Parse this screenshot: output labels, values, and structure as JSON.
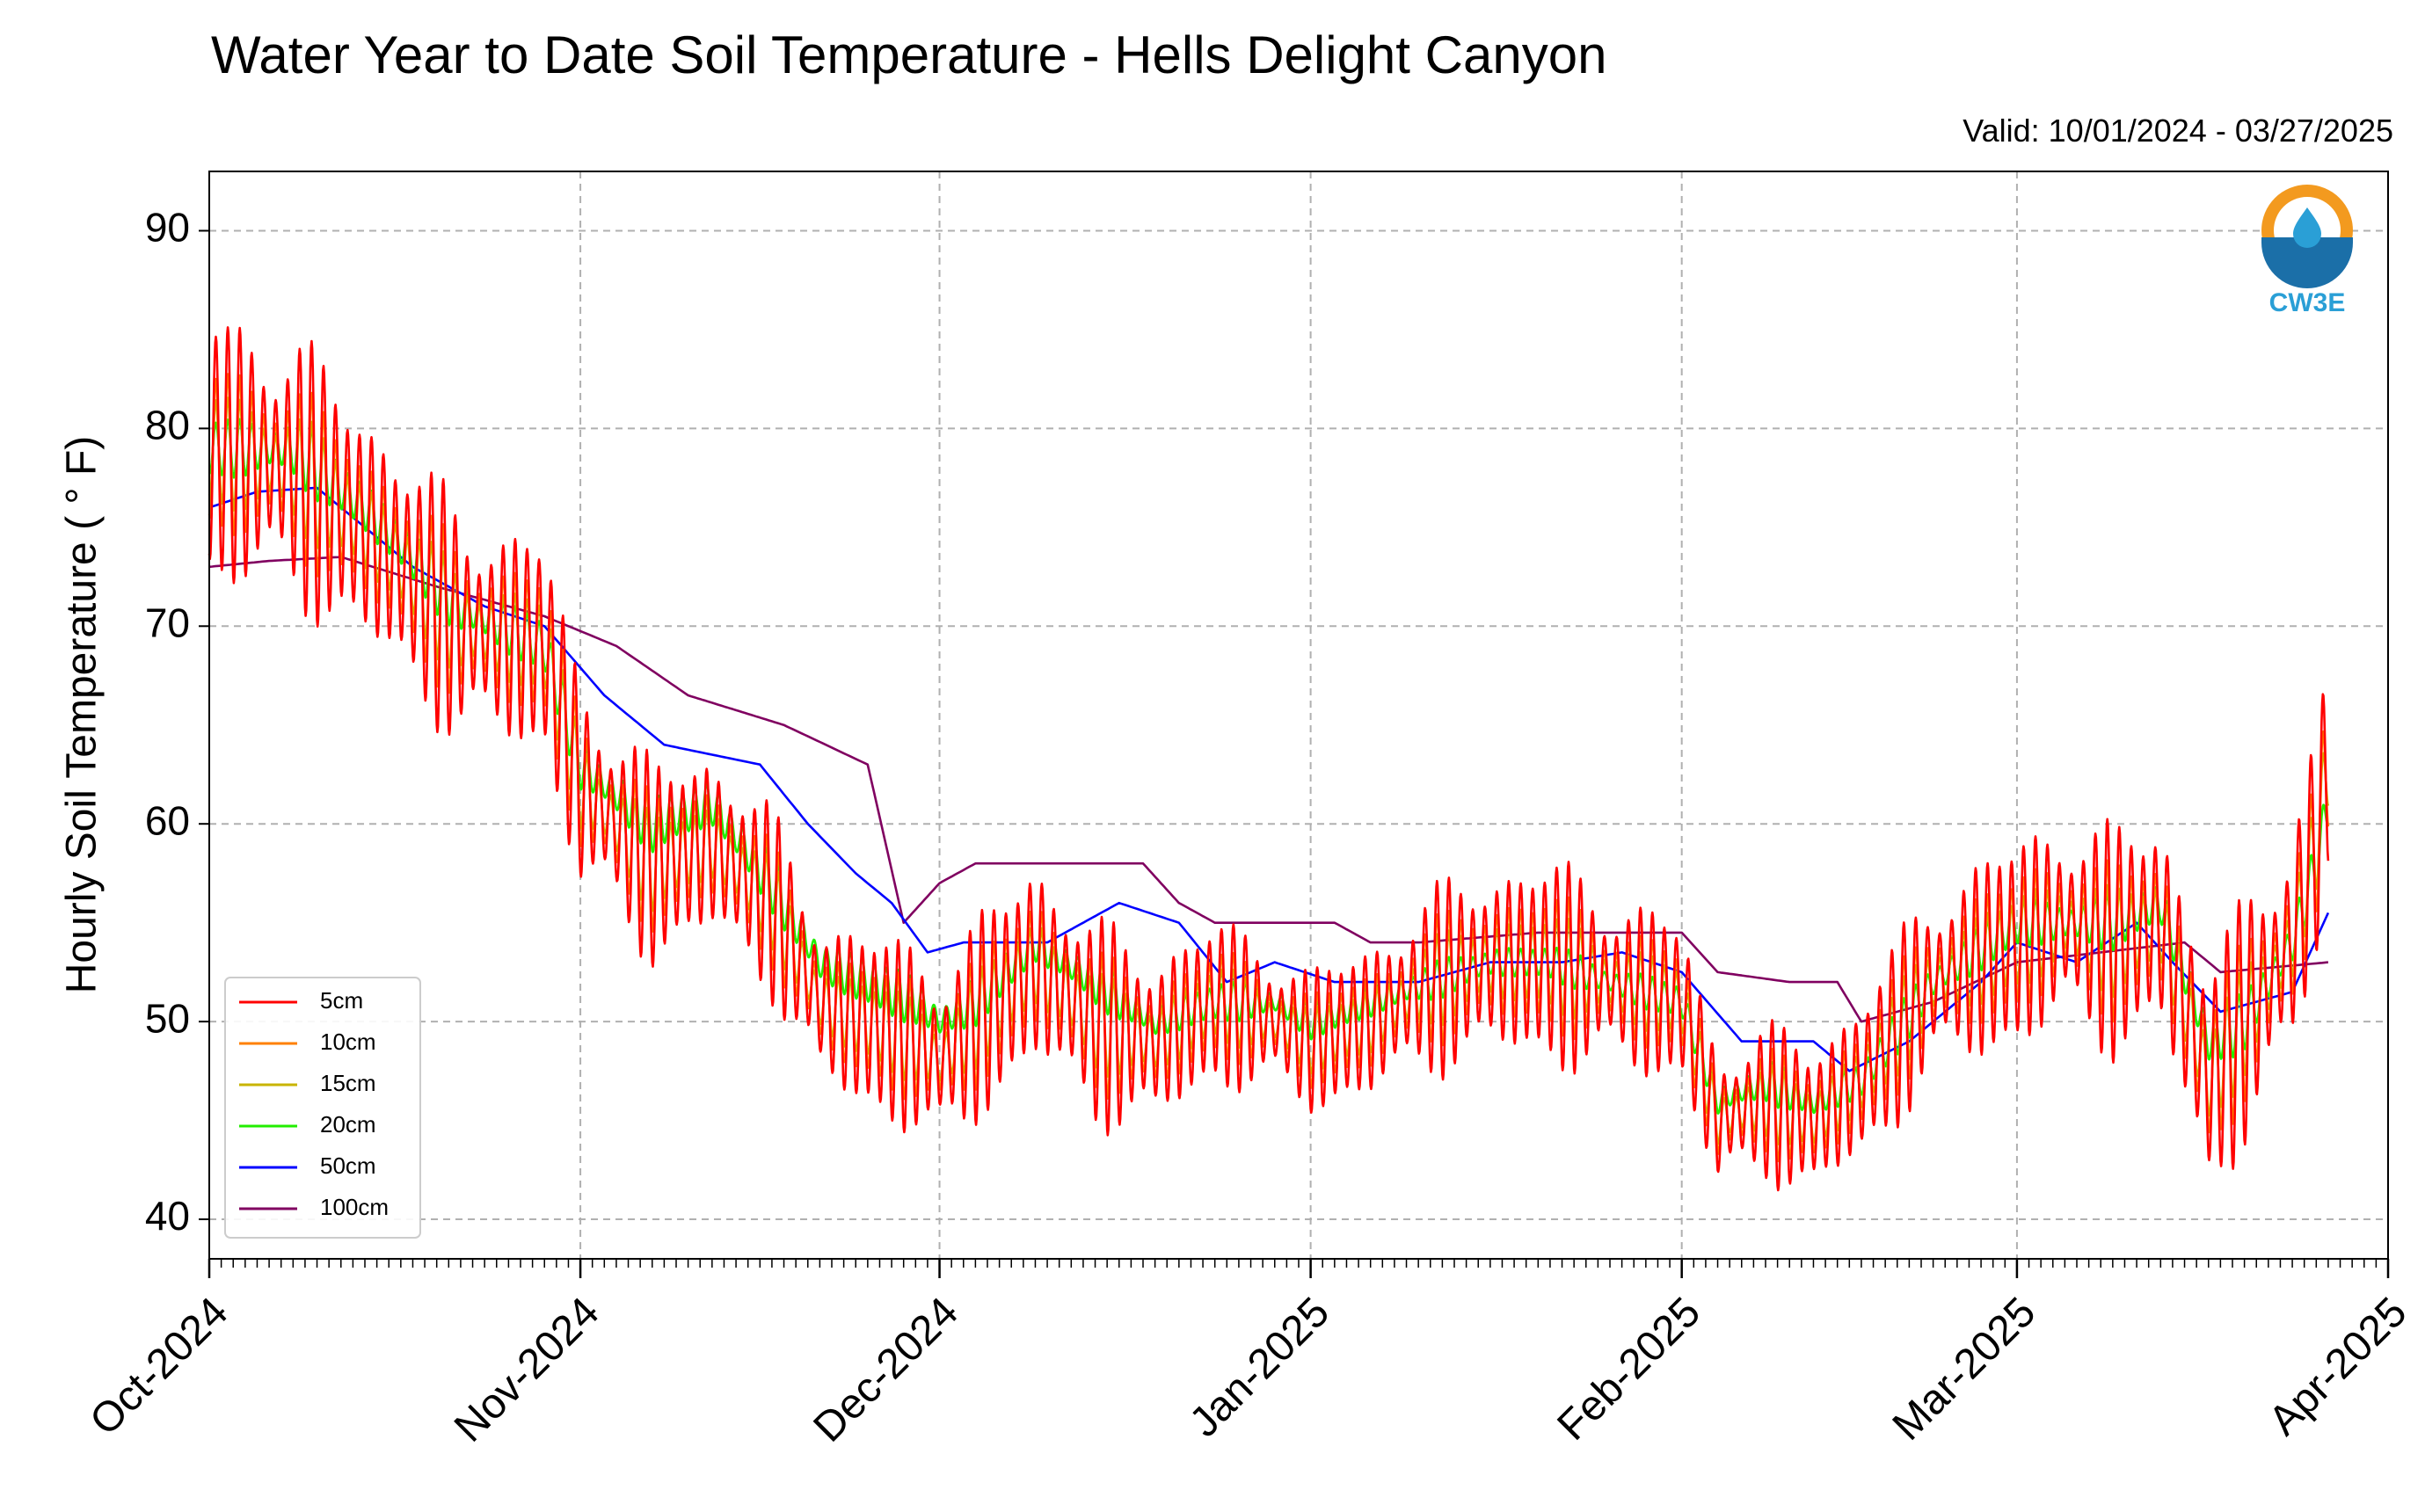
{
  "chart_data": {
    "type": "line",
    "title": "Water Year to Date Soil Temperature - Hells Delight Canyon",
    "subtitle": "Valid: 10/01/2024 - 03/27/2025",
    "xlabel": "",
    "ylabel": "Hourly Soil Temperature ( ° F)",
    "xlim": [
      "2024-10-01",
      "2025-04-01"
    ],
    "ylim": [
      38,
      93
    ],
    "x_tick_labels": [
      "Oct-2024",
      "Nov-2024",
      "Dec-2024",
      "Jan-2025",
      "Feb-2025",
      "Mar-2025",
      "Apr-2025"
    ],
    "x_ticks": [
      "2024-10-01",
      "2024-11-01",
      "2024-12-01",
      "2025-01-01",
      "2025-02-01",
      "2025-03-01",
      "2025-04-01"
    ],
    "y_ticks": [
      40,
      50,
      60,
      70,
      80,
      90
    ],
    "grid": true,
    "legend_position": "bottom-left",
    "logo_text": "CW3E",
    "series": [
      {
        "name": "5cm",
        "color": "#ff0000",
        "points": [
          [
            "2024-10-01",
            79
          ],
          [
            "2024-10-08",
            78
          ],
          [
            "2024-10-14",
            75
          ],
          [
            "2024-10-22",
            70
          ],
          [
            "2024-10-29",
            69
          ],
          [
            "2024-11-01",
            62
          ],
          [
            "2024-11-07",
            58
          ],
          [
            "2024-11-12",
            59
          ],
          [
            "2024-11-17",
            56
          ],
          [
            "2024-11-21",
            51
          ],
          [
            "2024-11-25",
            50
          ],
          [
            "2024-11-29",
            49
          ],
          [
            "2024-12-01",
            48
          ],
          [
            "2024-12-04",
            50
          ],
          [
            "2024-12-09",
            53
          ],
          [
            "2024-12-14",
            50
          ],
          [
            "2024-12-19",
            49
          ],
          [
            "2024-12-24",
            51
          ],
          [
            "2024-12-29",
            50
          ],
          [
            "2025-01-01",
            49
          ],
          [
            "2025-01-06",
            50
          ],
          [
            "2025-01-11",
            52
          ],
          [
            "2025-01-16",
            53
          ],
          [
            "2025-01-21",
            53
          ],
          [
            "2025-01-26",
            52
          ],
          [
            "2025-02-01",
            51
          ],
          [
            "2025-02-04",
            45
          ],
          [
            "2025-02-08",
            46
          ],
          [
            "2025-02-12",
            45
          ],
          [
            "2025-02-16",
            47
          ],
          [
            "2025-02-22",
            52
          ],
          [
            "2025-03-01",
            54
          ],
          [
            "2025-03-05",
            55
          ],
          [
            "2025-03-09",
            54
          ],
          [
            "2025-03-13",
            55
          ],
          [
            "2025-03-17",
            47
          ],
          [
            "2025-03-20",
            50
          ],
          [
            "2025-03-24",
            54
          ],
          [
            "2025-03-26",
            59
          ],
          [
            "2025-03-27",
            63
          ]
        ],
        "diurnal_amplitude": [
          [
            "2024-10-01",
            8
          ],
          [
            "2024-10-15",
            7
          ],
          [
            "2024-11-01",
            6
          ],
          [
            "2024-11-20",
            5
          ],
          [
            "2024-12-10",
            6
          ],
          [
            "2025-01-01",
            4
          ],
          [
            "2025-01-20",
            6
          ],
          [
            "2025-02-05",
            4
          ],
          [
            "2025-03-01",
            6
          ],
          [
            "2025-03-27",
            7
          ]
        ]
      },
      {
        "name": "10cm",
        "color": "#ff8000",
        "points": [
          [
            "2024-10-01",
            79
          ],
          [
            "2024-10-08",
            78
          ],
          [
            "2024-10-14",
            75
          ],
          [
            "2024-10-22",
            70
          ],
          [
            "2024-10-29",
            69
          ],
          [
            "2024-11-01",
            62
          ],
          [
            "2024-11-07",
            58
          ],
          [
            "2024-11-12",
            59
          ],
          [
            "2024-11-17",
            56
          ],
          [
            "2024-11-21",
            51
          ],
          [
            "2024-11-25",
            50
          ],
          [
            "2024-11-29",
            49
          ],
          [
            "2024-12-01",
            48
          ],
          [
            "2024-12-04",
            50
          ],
          [
            "2024-12-09",
            53
          ],
          [
            "2024-12-14",
            50
          ],
          [
            "2024-12-19",
            49
          ],
          [
            "2024-12-24",
            51
          ],
          [
            "2024-12-29",
            50
          ],
          [
            "2025-01-01",
            49
          ],
          [
            "2025-01-06",
            50
          ],
          [
            "2025-01-11",
            52
          ],
          [
            "2025-01-16",
            53
          ],
          [
            "2025-01-21",
            53
          ],
          [
            "2025-01-26",
            52
          ],
          [
            "2025-02-01",
            51
          ],
          [
            "2025-02-04",
            45
          ],
          [
            "2025-02-08",
            46
          ],
          [
            "2025-02-12",
            45
          ],
          [
            "2025-02-16",
            47
          ],
          [
            "2025-02-22",
            52
          ],
          [
            "2025-03-01",
            54
          ],
          [
            "2025-03-05",
            55
          ],
          [
            "2025-03-09",
            54
          ],
          [
            "2025-03-13",
            55
          ],
          [
            "2025-03-17",
            47
          ],
          [
            "2025-03-20",
            50
          ],
          [
            "2025-03-24",
            54
          ],
          [
            "2025-03-26",
            59
          ],
          [
            "2025-03-27",
            63
          ]
        ],
        "diurnal_amplitude": [
          [
            "2024-10-01",
            5
          ],
          [
            "2024-10-15",
            4.5
          ],
          [
            "2024-11-01",
            4
          ],
          [
            "2024-11-20",
            3.2
          ],
          [
            "2024-12-10",
            4
          ],
          [
            "2025-01-01",
            2.6
          ],
          [
            "2025-01-20",
            4
          ],
          [
            "2025-02-05",
            2.6
          ],
          [
            "2025-03-01",
            4
          ],
          [
            "2025-03-27",
            4.5
          ]
        ]
      },
      {
        "name": "15cm",
        "color": "#c8b400",
        "points": [
          [
            "2024-10-01",
            79
          ],
          [
            "2024-10-08",
            78
          ],
          [
            "2024-10-14",
            75
          ],
          [
            "2024-10-22",
            70
          ],
          [
            "2024-10-29",
            69
          ],
          [
            "2024-11-01",
            62
          ],
          [
            "2024-11-07",
            58
          ],
          [
            "2024-11-12",
            59
          ],
          [
            "2024-11-17",
            56
          ],
          [
            "2024-11-21",
            51
          ],
          [
            "2024-11-25",
            50
          ],
          [
            "2024-11-29",
            49
          ],
          [
            "2024-12-01",
            48
          ],
          [
            "2024-12-04",
            50
          ],
          [
            "2024-12-09",
            53
          ],
          [
            "2024-12-14",
            50
          ],
          [
            "2024-12-19",
            49
          ],
          [
            "2024-12-24",
            51
          ],
          [
            "2024-12-29",
            50
          ],
          [
            "2025-01-01",
            49
          ],
          [
            "2025-01-06",
            50
          ],
          [
            "2025-01-11",
            52
          ],
          [
            "2025-01-16",
            53
          ],
          [
            "2025-01-21",
            53
          ],
          [
            "2025-01-26",
            52
          ],
          [
            "2025-02-01",
            51
          ],
          [
            "2025-02-04",
            45
          ],
          [
            "2025-02-08",
            46
          ],
          [
            "2025-02-12",
            45
          ],
          [
            "2025-02-16",
            47
          ],
          [
            "2025-02-22",
            52
          ],
          [
            "2025-03-01",
            54
          ],
          [
            "2025-03-05",
            55
          ],
          [
            "2025-03-09",
            54
          ],
          [
            "2025-03-13",
            55
          ],
          [
            "2025-03-17",
            47
          ],
          [
            "2025-03-20",
            50
          ],
          [
            "2025-03-24",
            54
          ],
          [
            "2025-03-26",
            59
          ],
          [
            "2025-03-27",
            63
          ]
        ],
        "diurnal_amplitude": [
          [
            "2024-10-01",
            3.5
          ],
          [
            "2024-10-15",
            3
          ],
          [
            "2024-11-01",
            2.8
          ],
          [
            "2024-11-20",
            2.2
          ],
          [
            "2024-12-10",
            2.8
          ],
          [
            "2025-01-01",
            1.8
          ],
          [
            "2025-01-20",
            2.8
          ],
          [
            "2025-02-05",
            1.8
          ],
          [
            "2025-03-01",
            2.8
          ],
          [
            "2025-03-27",
            3
          ]
        ]
      },
      {
        "name": "20cm",
        "color": "#22ee00",
        "points": [
          [
            "2024-10-01",
            79
          ],
          [
            "2024-10-08",
            79
          ],
          [
            "2024-10-14",
            76
          ],
          [
            "2024-10-22",
            71
          ],
          [
            "2024-10-29",
            69
          ],
          [
            "2024-11-01",
            63
          ],
          [
            "2024-11-07",
            60
          ],
          [
            "2024-11-12",
            61
          ],
          [
            "2024-11-17",
            57
          ],
          [
            "2024-11-21",
            53
          ],
          [
            "2024-11-25",
            52
          ],
          [
            "2024-11-29",
            51
          ],
          [
            "2024-12-01",
            50
          ],
          [
            "2024-12-04",
            51
          ],
          [
            "2024-12-09",
            54
          ],
          [
            "2024-12-14",
            52
          ],
          [
            "2024-12-19",
            50
          ],
          [
            "2024-12-24",
            51
          ],
          [
            "2024-12-29",
            51
          ],
          [
            "2025-01-01",
            50
          ],
          [
            "2025-01-06",
            51
          ],
          [
            "2025-01-11",
            52
          ],
          [
            "2025-01-16",
            53
          ],
          [
            "2025-01-21",
            53
          ],
          [
            "2025-01-26",
            52
          ],
          [
            "2025-02-01",
            51
          ],
          [
            "2025-02-04",
            46
          ],
          [
            "2025-02-08",
            47
          ],
          [
            "2025-02-12",
            46
          ],
          [
            "2025-02-16",
            47
          ],
          [
            "2025-02-22",
            52
          ],
          [
            "2025-03-01",
            55
          ],
          [
            "2025-03-05",
            55
          ],
          [
            "2025-03-09",
            55
          ],
          [
            "2025-03-13",
            56
          ],
          [
            "2025-03-17",
            49
          ],
          [
            "2025-03-20",
            50
          ],
          [
            "2025-03-24",
            54
          ],
          [
            "2025-03-26",
            58
          ],
          [
            "2025-03-27",
            61
          ]
        ],
        "diurnal_amplitude": [
          [
            "2024-10-01",
            1.8
          ],
          [
            "2024-11-01",
            1.6
          ],
          [
            "2024-12-01",
            1.4
          ],
          [
            "2025-01-01",
            1
          ],
          [
            "2025-02-01",
            1
          ],
          [
            "2025-03-01",
            1.4
          ],
          [
            "2025-03-27",
            1.6
          ]
        ]
      },
      {
        "name": "50cm",
        "color": "#0000ff",
        "points": [
          [
            "2024-10-01",
            76
          ],
          [
            "2024-10-05",
            76.8
          ],
          [
            "2024-10-10",
            77
          ],
          [
            "2024-10-14",
            75
          ],
          [
            "2024-10-18",
            73
          ],
          [
            "2024-10-24",
            71
          ],
          [
            "2024-10-29",
            70
          ],
          [
            "2024-11-03",
            66.5
          ],
          [
            "2024-11-08",
            64
          ],
          [
            "2024-11-12",
            63.5
          ],
          [
            "2024-11-16",
            63
          ],
          [
            "2024-11-20",
            60
          ],
          [
            "2024-11-24",
            57.5
          ],
          [
            "2024-11-27",
            56
          ],
          [
            "2024-11-30",
            53.5
          ],
          [
            "2024-12-03",
            54
          ],
          [
            "2024-12-10",
            54
          ],
          [
            "2024-12-16",
            56
          ],
          [
            "2024-12-21",
            55
          ],
          [
            "2024-12-25",
            52
          ],
          [
            "2024-12-29",
            53
          ],
          [
            "2025-01-03",
            52
          ],
          [
            "2025-01-10",
            52
          ],
          [
            "2025-01-16",
            53
          ],
          [
            "2025-01-22",
            53
          ],
          [
            "2025-01-27",
            53.5
          ],
          [
            "2025-02-01",
            52.5
          ],
          [
            "2025-02-06",
            49
          ],
          [
            "2025-02-12",
            49
          ],
          [
            "2025-02-15",
            47.5
          ],
          [
            "2025-02-20",
            49
          ],
          [
            "2025-02-26",
            52
          ],
          [
            "2025-03-01",
            54
          ],
          [
            "2025-03-06",
            53
          ],
          [
            "2025-03-11",
            55
          ],
          [
            "2025-03-14",
            53
          ],
          [
            "2025-03-18",
            50.5
          ],
          [
            "2025-03-24",
            51.5
          ],
          [
            "2025-03-27",
            55.5
          ]
        ],
        "diurnal_amplitude": []
      },
      {
        "name": "100cm",
        "color": "#800060",
        "points": [
          [
            "2024-10-01",
            73
          ],
          [
            "2024-10-06",
            73.3
          ],
          [
            "2024-10-12",
            73.5
          ],
          [
            "2024-10-20",
            72
          ],
          [
            "2024-10-29",
            70.5
          ],
          [
            "2024-11-04",
            69
          ],
          [
            "2024-11-10",
            66.5
          ],
          [
            "2024-11-18",
            65
          ],
          [
            "2024-11-25",
            63
          ],
          [
            "2024-11-28",
            55
          ],
          [
            "2024-12-01",
            57
          ],
          [
            "2024-12-04",
            58
          ],
          [
            "2024-12-10",
            58
          ],
          [
            "2024-12-18",
            58
          ],
          [
            "2024-12-21",
            56
          ],
          [
            "2024-12-24",
            55
          ],
          [
            "2024-12-30",
            55
          ],
          [
            "2025-01-03",
            55
          ],
          [
            "2025-01-06",
            54
          ],
          [
            "2025-01-10",
            54
          ],
          [
            "2025-01-20",
            54.5
          ],
          [
            "2025-02-01",
            54.5
          ],
          [
            "2025-02-04",
            52.5
          ],
          [
            "2025-02-10",
            52
          ],
          [
            "2025-02-14",
            52
          ],
          [
            "2025-02-16",
            50
          ],
          [
            "2025-02-22",
            51
          ],
          [
            "2025-03-01",
            53
          ],
          [
            "2025-03-08",
            53.5
          ],
          [
            "2025-03-15",
            54
          ],
          [
            "2025-03-18",
            52.5
          ],
          [
            "2025-03-27",
            53
          ]
        ],
        "diurnal_amplitude": []
      }
    ]
  }
}
